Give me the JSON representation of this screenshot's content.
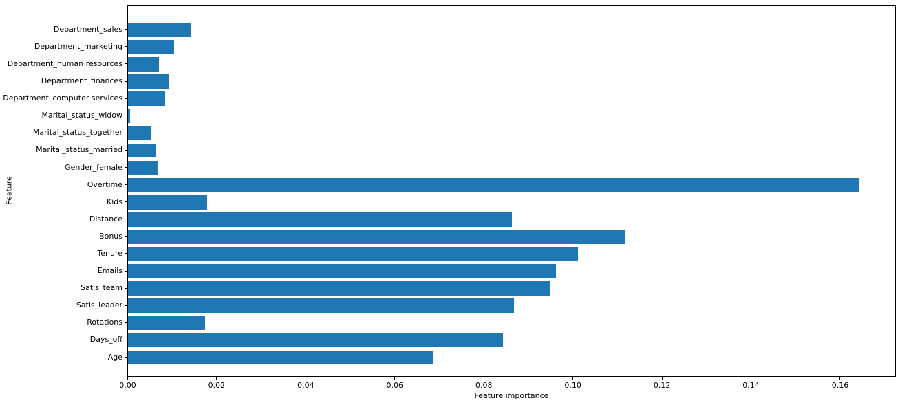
{
  "chart_data": {
    "type": "bar",
    "orientation": "horizontal",
    "title": "",
    "xlabel": "Feature importance",
    "ylabel": "Feature",
    "categories": [
      "Department_sales",
      "Department_marketing",
      "Department_human resources",
      "Department_finances",
      "Department_computer services",
      "Marital_status_widow",
      "Marital_status_together",
      "Marital_status_married",
      "Gender_female",
      "Overtime",
      "Kids",
      "Distance",
      "Bonus",
      "Tenure",
      "Emails",
      "Satis_team",
      "Satis_leader",
      "Rotations",
      "Days_off",
      "Age"
    ],
    "values": [
      0.0142,
      0.0103,
      0.007,
      0.0092,
      0.0083,
      0.0005,
      0.0051,
      0.0063,
      0.0067,
      0.1644,
      0.0178,
      0.0863,
      0.1118,
      0.1013,
      0.0963,
      0.0949,
      0.0869,
      0.0173,
      0.0843,
      0.0687
    ],
    "xlim": [
      0,
      0.1726
    ],
    "xticks": [
      "0.00",
      "0.02",
      "0.04",
      "0.06",
      "0.08",
      "0.10",
      "0.12",
      "0.14",
      "0.16"
    ],
    "grid": false,
    "legend": null,
    "bar_color": "#1f77b4",
    "axis_color": "#000000"
  }
}
